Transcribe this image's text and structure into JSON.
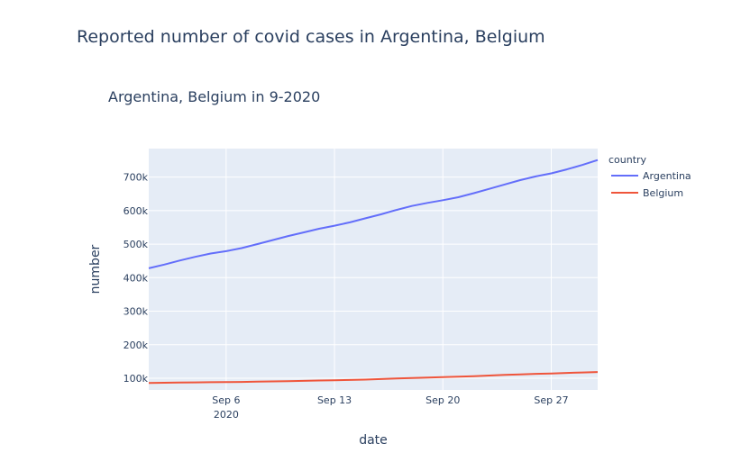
{
  "page": {
    "title": "Reported number of covid cases in Argentina, Belgium"
  },
  "chart_data": {
    "type": "line",
    "title": "Argentina, Belgium in 9-2020",
    "xlabel": "date",
    "ylabel": "number",
    "x": [
      "2020-09-01",
      "2020-09-02",
      "2020-09-03",
      "2020-09-04",
      "2020-09-05",
      "2020-09-06",
      "2020-09-07",
      "2020-09-08",
      "2020-09-09",
      "2020-09-10",
      "2020-09-11",
      "2020-09-12",
      "2020-09-13",
      "2020-09-14",
      "2020-09-15",
      "2020-09-16",
      "2020-09-17",
      "2020-09-18",
      "2020-09-19",
      "2020-09-20",
      "2020-09-21",
      "2020-09-22",
      "2020-09-23",
      "2020-09-24",
      "2020-09-25",
      "2020-09-26",
      "2020-09-27",
      "2020-09-28",
      "2020-09-29",
      "2020-09-30"
    ],
    "xlim": [
      "2020-09-01",
      "2020-09-30"
    ],
    "ylim": [
      65000,
      785000
    ],
    "yticks": [
      100000,
      200000,
      300000,
      400000,
      500000,
      600000,
      700000
    ],
    "ytick_labels": [
      "100k",
      "200k",
      "300k",
      "400k",
      "500k",
      "600k",
      "700k"
    ],
    "xticks": [
      "2020-09-06",
      "2020-09-13",
      "2020-09-20",
      "2020-09-27"
    ],
    "xtick_labels": [
      "Sep 6",
      "Sep 13",
      "Sep 20",
      "Sep 27"
    ],
    "xtick_sublabel": "2020",
    "legend_title": "country",
    "legend_position": "right",
    "grid": true,
    "series": [
      {
        "name": "Argentina",
        "color": "#636efa",
        "values": [
          428000,
          439000,
          451000,
          462000,
          472000,
          479000,
          488000,
          500000,
          512000,
          524000,
          535000,
          546000,
          555000,
          565000,
          577000,
          589000,
          602000,
          614000,
          623000,
          631000,
          640000,
          652000,
          665000,
          678000,
          691000,
          702000,
          711000,
          723000,
          736000,
          751000
        ]
      },
      {
        "name": "Belgium",
        "color": "#ef553b",
        "values": [
          86000,
          86500,
          87000,
          87500,
          88000,
          88500,
          89000,
          89600,
          90500,
          91300,
          92200,
          93200,
          94000,
          94900,
          95900,
          97400,
          99000,
          100600,
          102000,
          103300,
          104600,
          106200,
          108000,
          109900,
          111500,
          113000,
          114200,
          115700,
          117000,
          118500
        ]
      }
    ]
  }
}
